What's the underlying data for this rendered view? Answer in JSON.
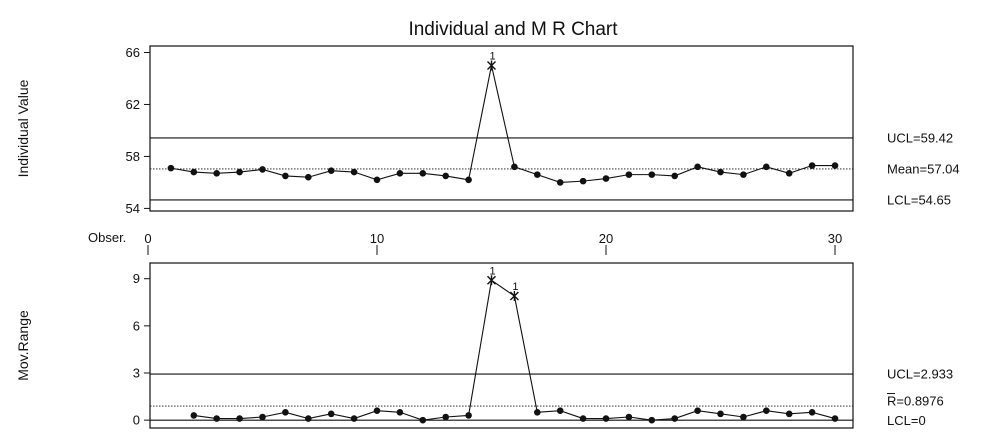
{
  "chart_data": [
    {
      "type": "line",
      "title": "Individual and M R Chart",
      "ylabel": "Individual Value",
      "xlabel": "Obser.",
      "ylim": [
        53.8,
        66.5
      ],
      "yticks": [
        54,
        58,
        62,
        66
      ],
      "xticks": [
        0,
        10,
        20,
        30
      ],
      "x": [
        1,
        2,
        3,
        4,
        5,
        6,
        7,
        8,
        9,
        10,
        11,
        12,
        13,
        14,
        15,
        16,
        17,
        18,
        19,
        20,
        21,
        22,
        23,
        24,
        25,
        26,
        27,
        28,
        29,
        30
      ],
      "values": [
        57.1,
        56.8,
        56.7,
        56.8,
        57.0,
        56.5,
        56.4,
        56.9,
        56.8,
        56.2,
        56.7,
        56.7,
        56.5,
        56.2,
        65.0,
        57.2,
        56.6,
        56.0,
        56.1,
        56.3,
        56.6,
        56.6,
        56.5,
        57.2,
        56.8,
        56.6,
        57.2,
        56.7,
        57.3,
        57.3
      ],
      "flags": [
        {
          "x": 15,
          "label": "1"
        }
      ],
      "control_lines": [
        {
          "name": "UCL",
          "value": 59.42,
          "label": "UCL=59.42",
          "style": "solid"
        },
        {
          "name": "Mean",
          "value": 57.04,
          "label": "Mean=57.04",
          "style": "dotted"
        },
        {
          "name": "LCL",
          "value": 54.65,
          "label": "LCL=54.65",
          "style": "solid"
        }
      ],
      "grid": false
    },
    {
      "type": "line",
      "title": "",
      "ylabel": "Mov.Range",
      "xlabel": "",
      "ylim": [
        -0.5,
        10.0
      ],
      "yticks": [
        0,
        3,
        6,
        9
      ],
      "x": [
        2,
        3,
        4,
        5,
        6,
        7,
        8,
        9,
        10,
        11,
        12,
        13,
        14,
        15,
        16,
        17,
        18,
        19,
        20,
        21,
        22,
        23,
        24,
        25,
        26,
        27,
        28,
        29,
        30
      ],
      "values": [
        0.3,
        0.1,
        0.1,
        0.2,
        0.5,
        0.1,
        0.4,
        0.1,
        0.6,
        0.5,
        0.0,
        0.2,
        0.3,
        8.9,
        7.9,
        0.5,
        0.6,
        0.1,
        0.1,
        0.2,
        0.0,
        0.1,
        0.6,
        0.4,
        0.2,
        0.6,
        0.4,
        0.5,
        0.1
      ],
      "flags": [
        {
          "x": 15,
          "label": "1"
        },
        {
          "x": 16,
          "label": "1"
        }
      ],
      "control_lines": [
        {
          "name": "UCL",
          "value": 2.933,
          "label": "UCL=2.933",
          "style": "solid"
        },
        {
          "name": "R-bar",
          "value": 0.8976,
          "label": "R=0.8976",
          "style": "dotted"
        },
        {
          "name": "LCL",
          "value": 0,
          "label": "LCL=0",
          "style": "solid"
        }
      ],
      "grid": false
    }
  ]
}
